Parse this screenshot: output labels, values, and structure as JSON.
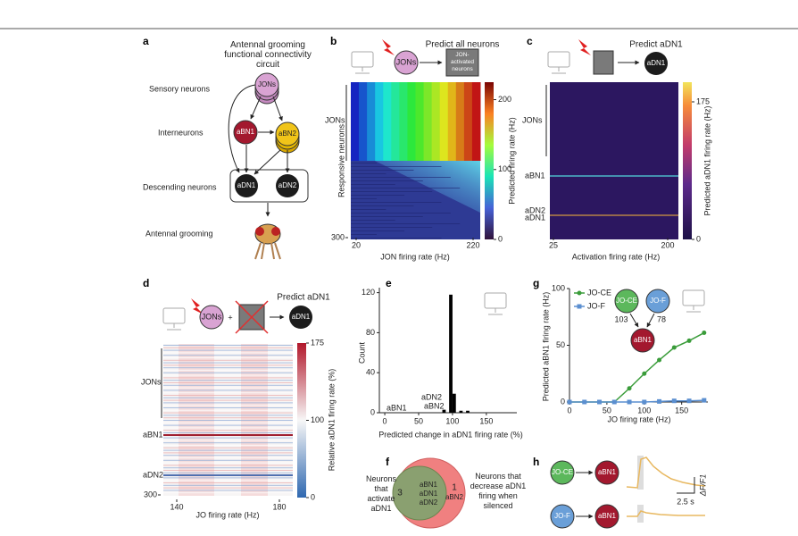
{
  "panels": {
    "a": {
      "label": "a",
      "title": "Antennal grooming functional connectivity circuit",
      "rows": [
        "Sensory neurons",
        "Interneurons",
        "Descending neurons",
        "Antennal grooming"
      ],
      "nodes": [
        "JONs",
        "aBN1",
        "aBN2",
        "aDN1",
        "aDN2"
      ]
    },
    "b": {
      "label": "b",
      "title": "Predict all neurons",
      "source": "JONs",
      "target": "JON-activated neurons",
      "ylabel": "Responsive neurons",
      "row_label": "JONs",
      "yticks": [
        300
      ],
      "xlim": [
        20,
        220
      ],
      "xticks": [
        20,
        220
      ],
      "xlabel": "JON firing rate (Hz)",
      "colorbar": {
        "label": "Predicted firing rate (Hz)",
        "lim": [
          0,
          225
        ],
        "ticks": [
          0,
          100,
          200
        ]
      }
    },
    "c": {
      "label": "c",
      "title": "Predict aDN1",
      "target": "aDN1",
      "row_labels": [
        "JONs",
        "aBN1",
        "aDN2",
        "aDN1"
      ],
      "xlim": [
        25,
        200
      ],
      "xticks": [
        25,
        200
      ],
      "xlabel": "Activation firing rate (Hz)",
      "colorbar": {
        "label": "Predicted aDN1 firing rate (Hz)",
        "lim": [
          0,
          200
        ],
        "ticks": [
          0,
          175
        ]
      }
    },
    "d": {
      "label": "d",
      "title": "Predict aDN1",
      "source": "JONs",
      "operator": "+",
      "target": "aDN1",
      "row_labels": [
        "JONs",
        "aBN1",
        "aDN2"
      ],
      "yticks": [
        300
      ],
      "xlim": [
        140,
        180
      ],
      "xticks": [
        140,
        180
      ],
      "xlabel": "JO firing rate (Hz)",
      "colorbar": {
        "label": "Relative aDN1 firing rate (%)",
        "ticks": [
          0,
          100,
          175
        ]
      }
    },
    "f": {
      "label": "f",
      "left_text": "Neurons that activate aDN1",
      "right_text": "Neurons that decrease aDN1 firing when silenced",
      "left_count": "3",
      "shared": [
        "aBN1",
        "aDN1",
        "aDN2"
      ],
      "right_count": "1",
      "right_only": "aBN2"
    },
    "h": {
      "label": "h",
      "rows": [
        [
          "JO-CE",
          "aBN1"
        ],
        [
          "JO-F",
          "aBN1"
        ]
      ],
      "scale_time": "2.5 s",
      "scale_signal": "ΔF/F1"
    }
  },
  "chart_data": [
    {
      "type": "histogram",
      "label": "e",
      "ylabel": "Count",
      "xlabel": "Predicted change in aDN1 firing rate (%)",
      "bins": [
        85,
        90,
        95,
        100,
        105,
        110,
        115,
        120,
        125
      ],
      "counts": [
        3,
        0,
        118,
        19,
        0,
        2,
        0,
        2
      ],
      "color": "#000000",
      "xlim": [
        -8,
        195
      ],
      "ylim": [
        0,
        125
      ],
      "xticks": [
        0,
        50,
        100,
        150
      ],
      "yticks": [
        0,
        40,
        80,
        120
      ],
      "annotations": [
        "aBN1",
        "aDN2",
        "aBN2"
      ]
    },
    {
      "type": "line",
      "label": "g",
      "ylabel": "Predicted aBN1 firing rate (Hz)",
      "xlabel": "JO firing rate (Hz)",
      "x": [
        0,
        20,
        40,
        60,
        80,
        100,
        120,
        140,
        160,
        180
      ],
      "series": [
        {
          "name": "JO-CE",
          "color": "#3a9c3a",
          "values": [
            0,
            0,
            0,
            0,
            12,
            25,
            37,
            48,
            54,
            61
          ]
        },
        {
          "name": "JO-F",
          "color": "#5b8fd0",
          "values": [
            0,
            0,
            0,
            0,
            0,
            0,
            0.5,
            1,
            1,
            1.5
          ]
        }
      ],
      "xlim": [
        0,
        185
      ],
      "ylim": [
        0,
        100
      ],
      "xticks": [
        0,
        50,
        100,
        150
      ],
      "yticks": [
        0,
        50,
        100
      ],
      "legend": "top-left",
      "circuit": {
        "nodes": [
          "JO-CE",
          "JO-F",
          "aBN1"
        ],
        "weights": [
          103,
          78
        ]
      }
    }
  ]
}
